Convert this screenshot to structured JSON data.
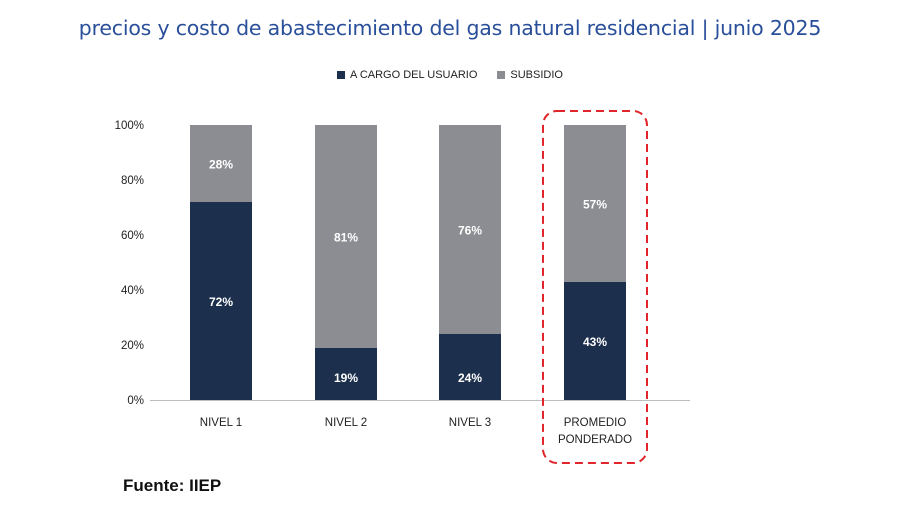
{
  "title": "precios y costo de abastecimiento del gas natural residencial | junio 2025",
  "source": "Fuente: IIEP",
  "chart_data": {
    "type": "bar",
    "stacked": true,
    "categories": [
      "NIVEL 1",
      "NIVEL 2",
      "NIVEL 3",
      "PROMEDIO PONDERADO"
    ],
    "highlighted_category": "PROMEDIO PONDERADO",
    "series": [
      {
        "name": "A CARGO DEL USUARIO",
        "values": [
          72,
          19,
          24,
          43
        ],
        "labels": [
          "72%",
          "19%",
          "24%",
          "43%"
        ],
        "color": "#1c2f4d"
      },
      {
        "name": "SUBSIDIO",
        "values": [
          28,
          81,
          76,
          57
        ],
        "labels": [
          "28%",
          "81%",
          "76%",
          "57%"
        ],
        "color": "#8c8d92"
      }
    ],
    "ylim": [
      0,
      100
    ],
    "yticks": [
      "0%",
      "20%",
      "40%",
      "60%",
      "80%",
      "100%"
    ],
    "grid": false,
    "legend_position": "top",
    "highlight_color": "#e0252b"
  }
}
